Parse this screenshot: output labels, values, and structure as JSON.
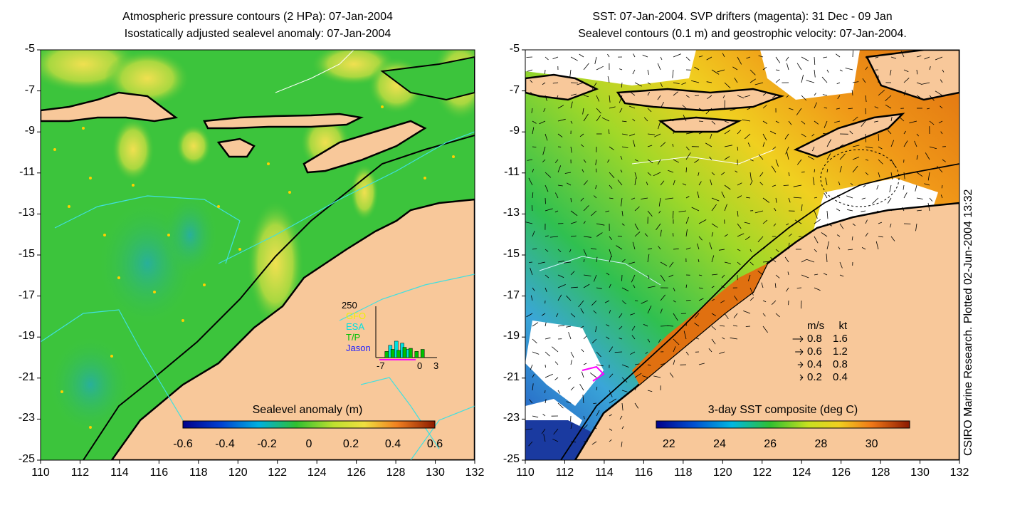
{
  "left": {
    "title1": "Atmospheric pressure contours (2 HPa): 07-Jan-2004",
    "title2": "Isostatically adjusted sealevel anomaly: 07-Jan-2004",
    "colorbar": {
      "label": "Sealevel anomaly (m)",
      "ticks": [
        "-0.6",
        "-0.4",
        "-0.2",
        "0",
        "0.2",
        "0.4",
        "0.6"
      ],
      "range": [
        -0.6,
        0.6
      ]
    },
    "histogram": {
      "ymax_label": "250",
      "legend": [
        {
          "label": "GFO",
          "color": "#f0f000"
        },
        {
          "label": "ESA",
          "color": "#00e0e0"
        },
        {
          "label": "T/P",
          "color": "#00c000"
        },
        {
          "label": "Jason",
          "color": "#2020ff"
        }
      ],
      "xticks": [
        "-7",
        "0",
        "3"
      ],
      "series": {
        "ESA": [
          0,
          0,
          60,
          80,
          70,
          40,
          0,
          0,
          0,
          0
        ],
        "T/P": [
          0,
          30,
          40,
          35,
          50,
          45,
          30,
          40,
          0,
          0
        ]
      }
    }
  },
  "right": {
    "title1": "SST: 07-Jan-2004. SVP drifters (magenta): 31 Dec - 09 Jan",
    "title2": "Sealevel contours (0.1 m) and geostrophic velocity: 07-Jan-2004.",
    "colorbar": {
      "label": "3-day SST composite (deg C)",
      "ticks": [
        "22",
        "24",
        "26",
        "28",
        "30"
      ],
      "range": [
        21.5,
        31.5
      ]
    },
    "velocity_legend": {
      "header_ms": "m/s",
      "header_kt": "kt",
      "rows": [
        {
          "ms": "0.8",
          "kt": "1.6"
        },
        {
          "ms": "0.6",
          "kt": "1.2"
        },
        {
          "ms": "0.4",
          "kt": "0.8"
        },
        {
          "ms": "0.2",
          "kt": "0.4"
        }
      ]
    }
  },
  "axes": {
    "yticks": [
      "-5",
      "-7",
      "-9",
      "-11",
      "-13",
      "-15",
      "-17",
      "-19",
      "-21",
      "-23",
      "-25"
    ],
    "xticks": [
      "110",
      "112",
      "114",
      "116",
      "118",
      "120",
      "122",
      "124",
      "126",
      "128",
      "130",
      "132"
    ]
  },
  "credit": "CSIRO Marine Research. Plotted 02-Jun-2004 13:32",
  "colors": {
    "land": "#f8c89a",
    "ocean_left": "#3cc43c",
    "sst_warm": "#e07a10",
    "sst_cool": "#2060d0",
    "drifter": "#ff00ff",
    "contour": "#40e0e0"
  }
}
